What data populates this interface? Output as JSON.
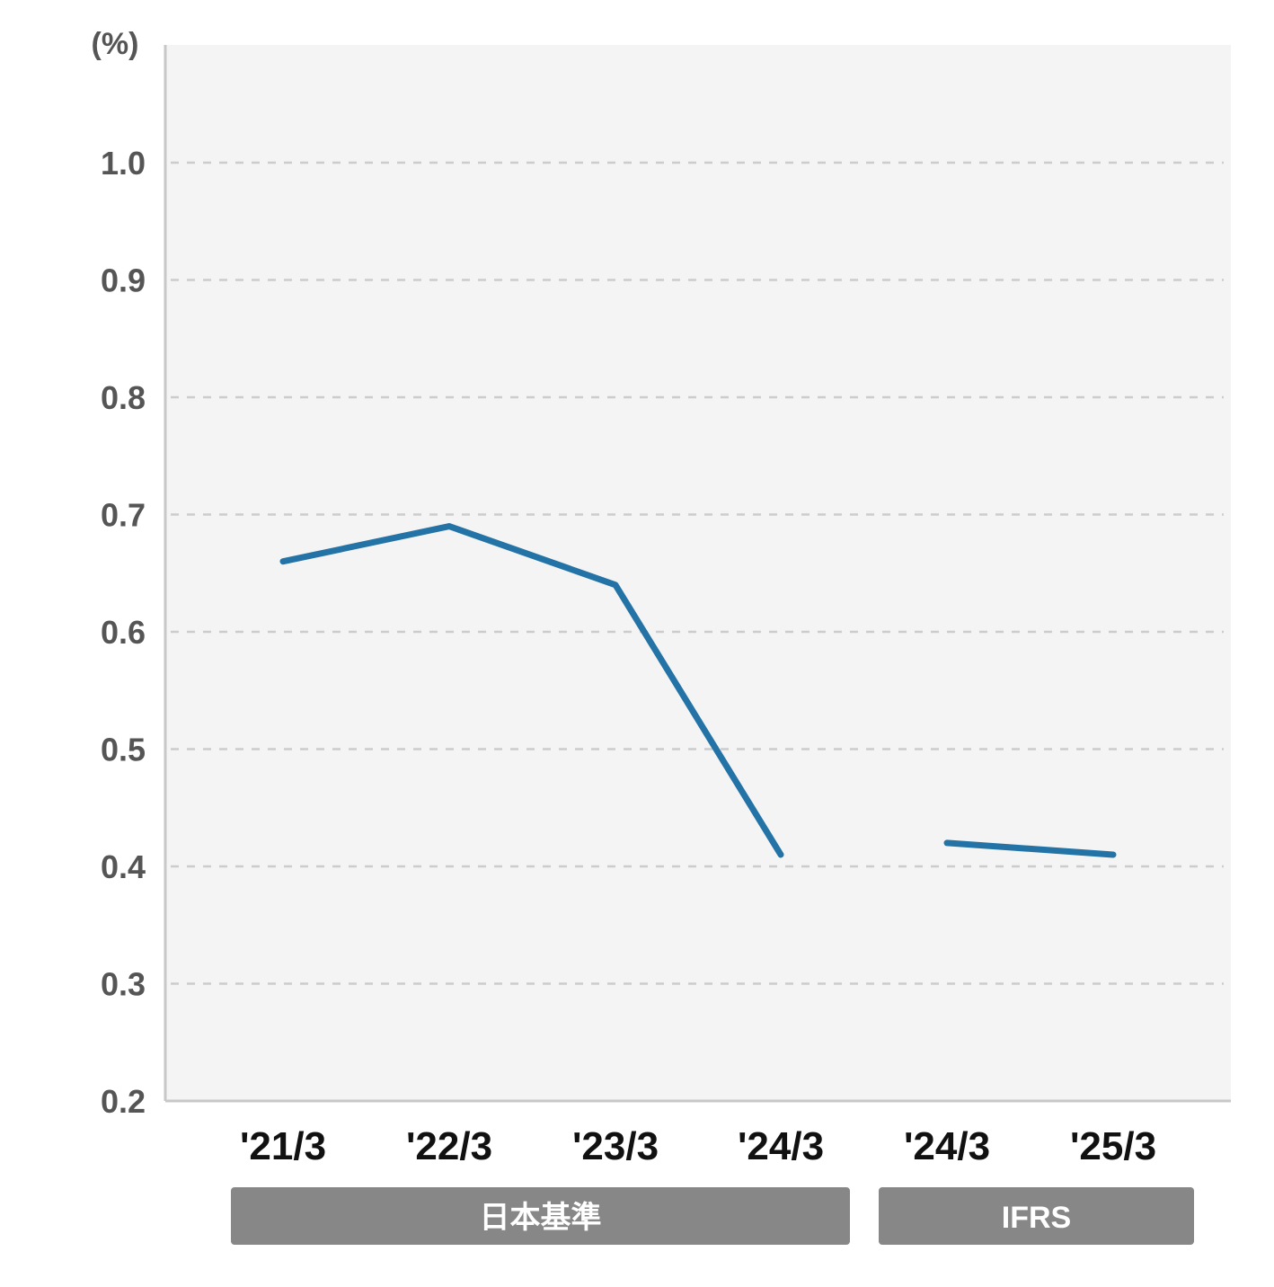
{
  "colors": {
    "plot_background": "#f4f4f4",
    "grid": "#cccccc",
    "axis": "#c8c8c8",
    "series": "#2473a6",
    "group_band": "#878787",
    "tick_label": "#555555",
    "x_label": "#111111"
  },
  "chart_data": {
    "type": "line",
    "title": "",
    "xlabel": "",
    "ylabel": "(%)",
    "ylim": [
      0.2,
      1.1
    ],
    "yticks": [
      "0.2",
      "0.3",
      "0.4",
      "0.5",
      "0.6",
      "0.7",
      "0.8",
      "0.9",
      "1.0"
    ],
    "grid": "horizontal dashed",
    "categories": [
      "'21/3",
      "'22/3",
      "'23/3",
      "'24/3",
      "'24/3",
      "'25/3"
    ],
    "segments": [
      {
        "group": "日本基準",
        "x": [
          "'21/3",
          "'22/3",
          "'23/3",
          "'24/3"
        ],
        "values": [
          0.66,
          0.69,
          0.64,
          0.41
        ]
      },
      {
        "group": "IFRS",
        "x": [
          "'24/3",
          "'25/3"
        ],
        "values": [
          0.42,
          0.41
        ]
      }
    ],
    "groups": [
      {
        "label": "日本基準",
        "categories": [
          "'21/3",
          "'22/3",
          "'23/3",
          "'24/3"
        ]
      },
      {
        "label": "IFRS",
        "categories": [
          "'24/3",
          "'25/3"
        ]
      }
    ]
  }
}
